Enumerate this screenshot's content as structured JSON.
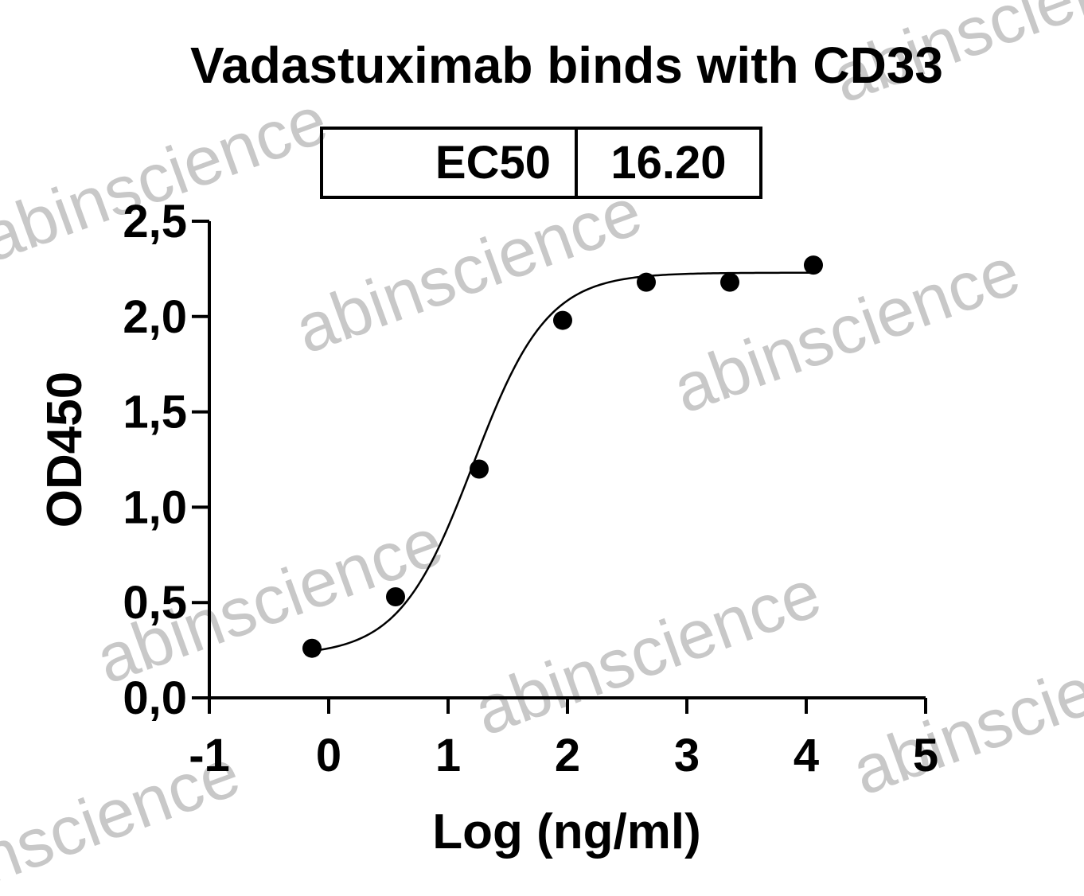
{
  "colors": {
    "ink": "#000000",
    "watermark": "#c8c8c8",
    "background": "#ffffff"
  },
  "watermark_text": "abinscience",
  "chart_data": {
    "type": "scatter",
    "title": "Vadastuximab binds with CD33",
    "xlabel": "Log (ng/ml)",
    "ylabel": "OD450",
    "xlim": [
      -1,
      5
    ],
    "ylim": [
      0,
      2.5
    ],
    "x_ticks": [
      -1,
      0,
      1,
      2,
      3,
      4,
      5
    ],
    "x_tick_labels": [
      "-1",
      "0",
      "1",
      "2",
      "3",
      "4",
      "5"
    ],
    "y_ticks": [
      0,
      0.5,
      1.0,
      1.5,
      2.0,
      2.5
    ],
    "y_tick_labels": [
      "0,0",
      "0,5",
      "1,0",
      "1,5",
      "2,0",
      "2,5"
    ],
    "grid": false,
    "legend": "none",
    "series": [
      {
        "x": [
          -0.14,
          0.56,
          1.26,
          1.96,
          2.66,
          3.36,
          4.06
        ],
        "y": [
          0.26,
          0.53,
          1.2,
          1.98,
          2.18,
          2.18,
          2.27
        ]
      }
    ],
    "fit": {
      "model": "4PL",
      "bottom": 0.22,
      "top": 2.23,
      "log_ec50": 1.21,
      "hill_slope": 1.4
    },
    "ec50_table": {
      "label": "EC50",
      "value": "16.20"
    }
  }
}
